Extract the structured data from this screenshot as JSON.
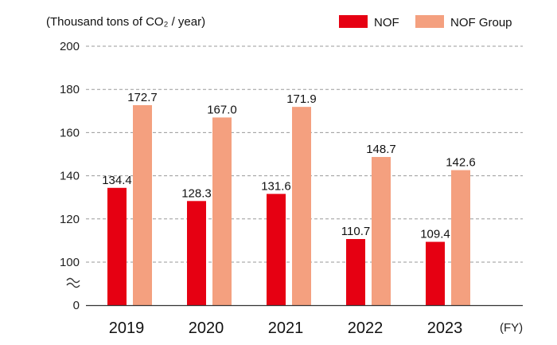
{
  "chart_data": {
    "type": "bar",
    "unit_label": "(Thousand tons of CO₂ / year)",
    "x_unit": "(FY)",
    "categories": [
      "2019",
      "2020",
      "2021",
      "2022",
      "2023"
    ],
    "series": [
      {
        "name": "NOF",
        "color": "#e60012",
        "values": [
          134.4,
          128.3,
          131.6,
          110.7,
          109.4
        ],
        "labels": [
          "134.4",
          "128.3",
          "131.6",
          "110.7",
          "109.4"
        ]
      },
      {
        "name": "NOF Group",
        "color": "#f4a07f",
        "values": [
          172.7,
          167.0,
          171.9,
          148.7,
          142.6
        ],
        "labels": [
          "172.7",
          "167.0",
          "171.9",
          "148.7",
          "142.6"
        ]
      }
    ],
    "y_ticks": [
      0,
      100,
      120,
      140,
      160,
      180,
      200
    ],
    "axis_break": "between 0 and 100",
    "ylim": [
      0,
      200
    ],
    "grid": "dashed horizontal",
    "legend_position": "top-right"
  }
}
